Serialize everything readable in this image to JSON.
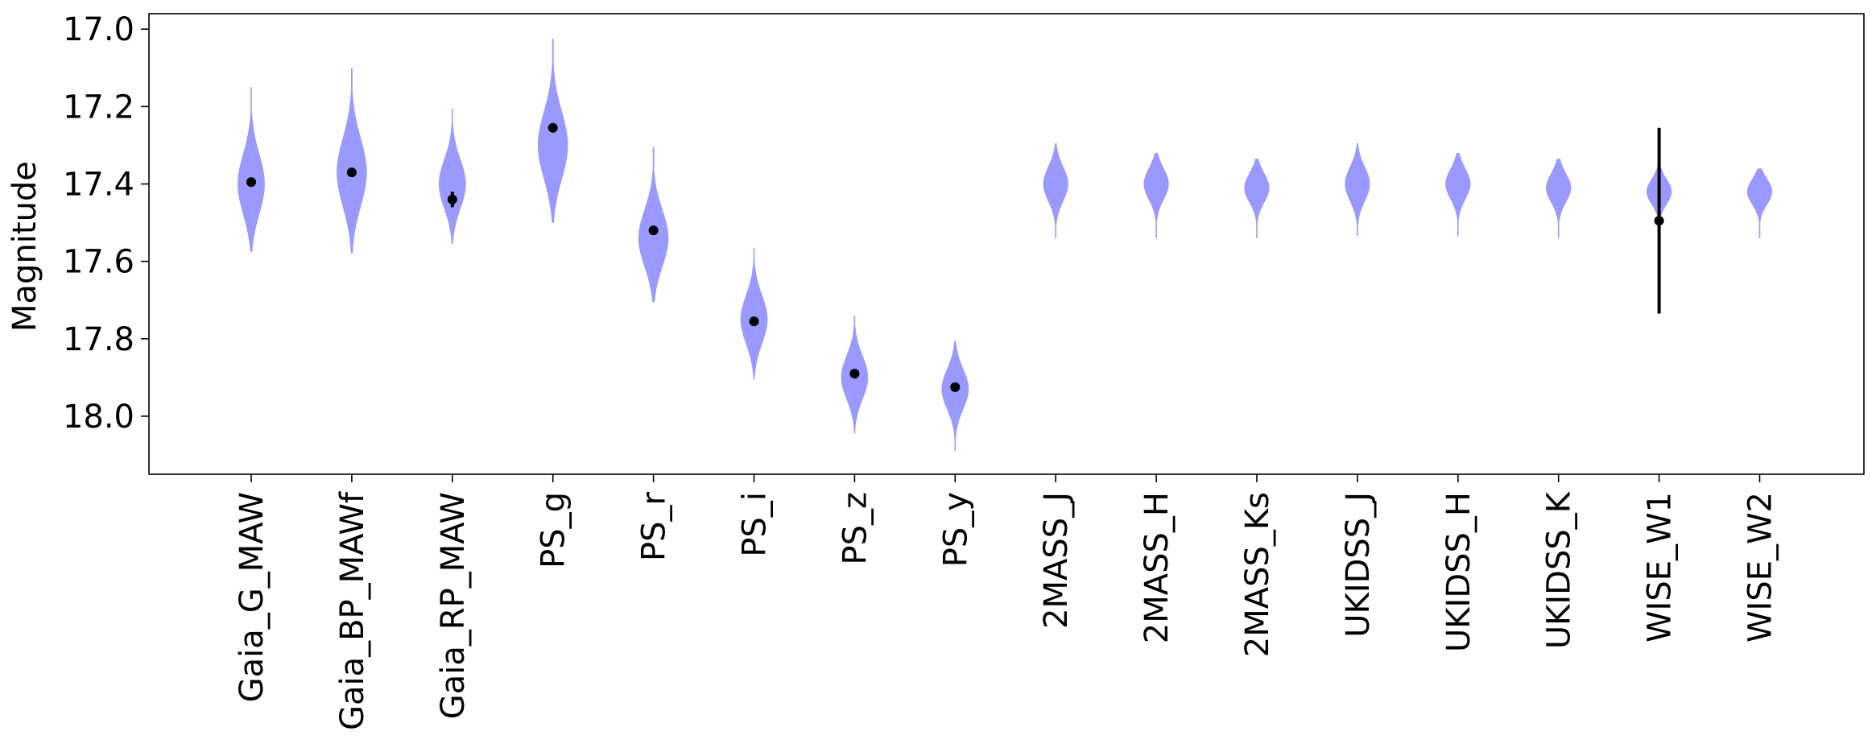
{
  "chart_data": {
    "type": "violin",
    "title": "",
    "xlabel": "",
    "ylabel": "Magnitude",
    "y_inverted": true,
    "ylim": [
      18.15,
      16.96
    ],
    "yticks": [
      17.0,
      17.2,
      17.4,
      17.6,
      17.8,
      18.0
    ],
    "ytick_labels": [
      "17.0",
      "17.2",
      "17.4",
      "17.6",
      "17.8",
      "18.0"
    ],
    "violin_color": "#9999ff",
    "point_color": "#000000",
    "grid": false,
    "categories": [
      "Gaia_G_MAW",
      "Gaia_BP_MAWf",
      "Gaia_RP_MAW",
      "PS_g",
      "PS_r",
      "PS_i",
      "PS_z",
      "PS_y",
      "2MASS_J",
      "2MASS_H",
      "2MASS_Ks",
      "UKIDSS_J",
      "UKIDSS_H",
      "UKIDSS_K",
      "WISE_W1",
      "WISE_W2"
    ],
    "violins": [
      {
        "min": 17.15,
        "max": 17.575,
        "mode": 17.4,
        "width": 0.27
      },
      {
        "min": 17.1,
        "max": 17.58,
        "mode": 17.37,
        "width": 0.3
      },
      {
        "min": 17.205,
        "max": 17.555,
        "mode": 17.4,
        "width": 0.27
      },
      {
        "min": 17.025,
        "max": 17.5,
        "mode": 17.3,
        "width": 0.3
      },
      {
        "min": 17.305,
        "max": 17.705,
        "mode": 17.54,
        "width": 0.3
      },
      {
        "min": 17.565,
        "max": 17.905,
        "mode": 17.75,
        "width": 0.27
      },
      {
        "min": 17.74,
        "max": 18.045,
        "mode": 17.9,
        "width": 0.27
      },
      {
        "min": 17.805,
        "max": 18.09,
        "mode": 17.93,
        "width": 0.27
      },
      {
        "min": 17.295,
        "max": 17.54,
        "mode": 17.4,
        "width": 0.25
      },
      {
        "min": 17.32,
        "max": 17.54,
        "mode": 17.4,
        "width": 0.25
      },
      {
        "min": 17.335,
        "max": 17.54,
        "mode": 17.41,
        "width": 0.25
      },
      {
        "min": 17.295,
        "max": 17.535,
        "mode": 17.4,
        "width": 0.25
      },
      {
        "min": 17.32,
        "max": 17.535,
        "mode": 17.4,
        "width": 0.25
      },
      {
        "min": 17.335,
        "max": 17.54,
        "mode": 17.41,
        "width": 0.25
      },
      {
        "min": 17.35,
        "max": 17.53,
        "mode": 17.42,
        "width": 0.25
      },
      {
        "min": 17.36,
        "max": 17.54,
        "mode": 17.42,
        "width": 0.25
      }
    ],
    "observed": [
      {
        "value": 17.395,
        "error": 0.005
      },
      {
        "value": 17.37,
        "error": 0.01
      },
      {
        "value": 17.44,
        "error": 0.02
      },
      {
        "value": 17.255,
        "error": 0.005
      },
      {
        "value": 17.52,
        "error": 0.005
      },
      {
        "value": 17.755,
        "error": 0.005
      },
      {
        "value": 17.89,
        "error": 0.005
      },
      {
        "value": 17.925,
        "error": 0.005
      },
      null,
      null,
      null,
      null,
      null,
      null,
      {
        "value": 17.495,
        "error": 0.24
      },
      null
    ]
  }
}
